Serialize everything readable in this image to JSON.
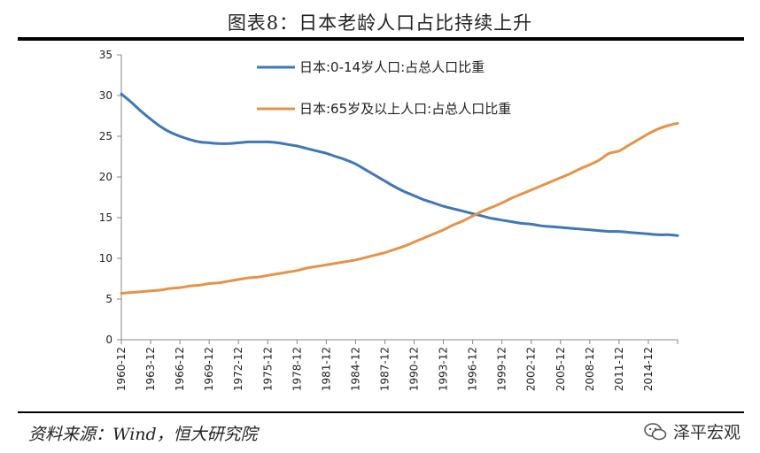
{
  "title": "图表8：日本老龄人口占比持续上升",
  "source": "资料来源：Wind，恒大研究院",
  "watermark": {
    "icon": "wechat-icon",
    "text": "泽平宏观"
  },
  "colors": {
    "series_blue": "#3f78b5",
    "series_orange": "#e59349",
    "axis": "#888888"
  },
  "chart_data": {
    "type": "line",
    "title": "图表8：日本老龄人口占比持续上升",
    "xlabel": "",
    "ylabel": "",
    "ylim": [
      0,
      35
    ],
    "yticks": [
      0,
      5,
      10,
      15,
      20,
      25,
      30,
      35
    ],
    "grid": false,
    "legend_position": "top-center",
    "x_range": [
      1960,
      2017
    ],
    "x_tick_labels": [
      "1960-12",
      "1963-12",
      "1966-12",
      "1969-12",
      "1972-12",
      "1975-12",
      "1978-12",
      "1981-12",
      "1984-12",
      "1987-12",
      "1990-12",
      "1993-12",
      "1996-12",
      "1999-12",
      "2002-12",
      "2005-12",
      "2008-12",
      "2011-12",
      "2014-12"
    ],
    "series": [
      {
        "name": "日本:0-14岁人口:占总人口比重",
        "color": "#3f78b5",
        "x": [
          1960,
          1961,
          1962,
          1963,
          1964,
          1965,
          1966,
          1967,
          1968,
          1969,
          1970,
          1971,
          1972,
          1973,
          1974,
          1975,
          1976,
          1977,
          1978,
          1979,
          1980,
          1981,
          1982,
          1983,
          1984,
          1985,
          1986,
          1987,
          1988,
          1989,
          1990,
          1991,
          1992,
          1993,
          1994,
          1995,
          1996,
          1997,
          1998,
          1999,
          2000,
          2001,
          2002,
          2003,
          2004,
          2005,
          2006,
          2007,
          2008,
          2009,
          2010,
          2011,
          2012,
          2013,
          2014,
          2015,
          2016,
          2017
        ],
        "values": [
          30.2,
          29.2,
          28.1,
          27.1,
          26.2,
          25.5,
          25.0,
          24.6,
          24.3,
          24.2,
          24.1,
          24.1,
          24.2,
          24.3,
          24.3,
          24.3,
          24.2,
          24.0,
          23.8,
          23.5,
          23.2,
          22.9,
          22.5,
          22.1,
          21.6,
          20.9,
          20.2,
          19.5,
          18.8,
          18.2,
          17.7,
          17.2,
          16.8,
          16.4,
          16.1,
          15.8,
          15.5,
          15.2,
          14.9,
          14.7,
          14.5,
          14.3,
          14.2,
          14.0,
          13.9,
          13.8,
          13.7,
          13.6,
          13.5,
          13.4,
          13.3,
          13.3,
          13.2,
          13.1,
          13.0,
          12.9,
          12.9,
          12.8
        ]
      },
      {
        "name": "日本:65岁及以上人口:占总人口比重",
        "color": "#e59349",
        "x": [
          1960,
          1961,
          1962,
          1963,
          1964,
          1965,
          1966,
          1967,
          1968,
          1969,
          1970,
          1971,
          1972,
          1973,
          1974,
          1975,
          1976,
          1977,
          1978,
          1979,
          1980,
          1981,
          1982,
          1983,
          1984,
          1985,
          1986,
          1987,
          1988,
          1989,
          1990,
          1991,
          1992,
          1993,
          1994,
          1995,
          1996,
          1997,
          1998,
          1999,
          2000,
          2001,
          2002,
          2003,
          2004,
          2005,
          2006,
          2007,
          2008,
          2009,
          2010,
          2011,
          2012,
          2013,
          2014,
          2015,
          2016,
          2017
        ],
        "values": [
          5.7,
          5.8,
          5.9,
          6.0,
          6.1,
          6.3,
          6.4,
          6.6,
          6.7,
          6.9,
          7.0,
          7.2,
          7.4,
          7.6,
          7.7,
          7.9,
          8.1,
          8.3,
          8.5,
          8.8,
          9.0,
          9.2,
          9.4,
          9.6,
          9.8,
          10.1,
          10.4,
          10.7,
          11.1,
          11.5,
          12.0,
          12.5,
          13.0,
          13.5,
          14.1,
          14.6,
          15.2,
          15.8,
          16.3,
          16.8,
          17.4,
          17.9,
          18.4,
          18.9,
          19.4,
          19.9,
          20.4,
          21.0,
          21.5,
          22.1,
          22.9,
          23.2,
          23.9,
          24.6,
          25.3,
          25.9,
          26.3,
          26.6
        ]
      }
    ]
  }
}
